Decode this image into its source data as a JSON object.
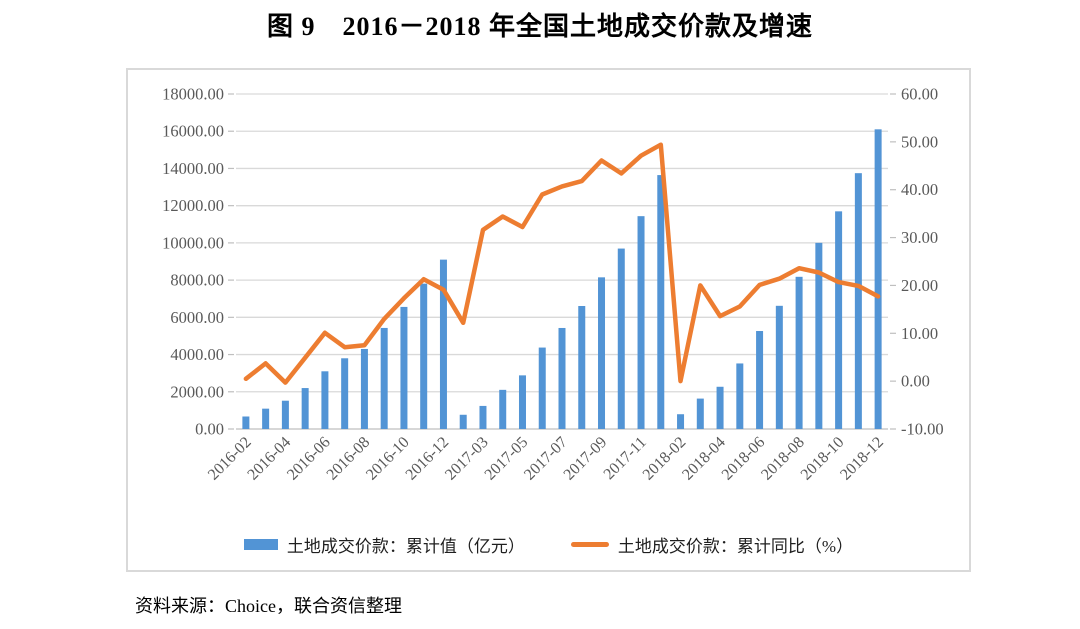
{
  "title": "图 9　2016－2018 年全国土地成交价款及增速",
  "source": "资料来源：Choice，联合资信整理",
  "colors": {
    "bar": "#5294d5",
    "line": "#ed7d31",
    "grid": "#d9d9d9",
    "axis_baseline": "#bfbfbf",
    "tick_text": "#595959"
  },
  "legend": [
    {
      "label": "土地成交价款：累计值（亿元）",
      "type": "bar",
      "color": "#5294d5"
    },
    {
      "label": "土地成交价款：累计同比（%）",
      "type": "line",
      "color": "#ed7d31"
    }
  ],
  "chart_data": {
    "type": "combo-bar-line",
    "categories": [
      "2016-02",
      "2016-03",
      "2016-04",
      "2016-05",
      "2016-06",
      "2016-07",
      "2016-08",
      "2016-09",
      "2016-10",
      "2016-11",
      "2016-12",
      "2017-02",
      "2017-03",
      "2017-04",
      "2017-05",
      "2017-06",
      "2017-07",
      "2017-08",
      "2017-09",
      "2017-10",
      "2017-11",
      "2017-12",
      "2018-02",
      "2018-03",
      "2018-04",
      "2018-05",
      "2018-06",
      "2018-07",
      "2018-08",
      "2018-09",
      "2018-10",
      "2018-11",
      "2018-12"
    ],
    "x_tick_labels_shown": [
      "2016-02",
      "2016-04",
      "2016-06",
      "2016-08",
      "2016-10",
      "2016-12",
      "2017-03",
      "2017-05",
      "2017-07",
      "2017-09",
      "2017-11",
      "2018-02",
      "2018-04",
      "2018-06",
      "2018-08",
      "2018-10",
      "2018-12"
    ],
    "series": [
      {
        "name": "土地成交价款：累计值（亿元）",
        "type": "bar",
        "axis": "left",
        "color": "#5294d5",
        "values": [
          672,
          1093,
          1520,
          2200,
          3100,
          3800,
          4300,
          5430,
          6560,
          7810,
          9100,
          765,
          1240,
          2104,
          2882,
          4376,
          5428,
          6609,
          8149,
          9695,
          11436,
          13643,
          794,
          1634,
          2269,
          3522,
          5265,
          6619,
          8177,
          10002,
          11695,
          13746,
          16102
        ]
      },
      {
        "name": "土地成交价款：累计同比（%）",
        "type": "line",
        "axis": "right",
        "color": "#ed7d31",
        "values": [
          0.5,
          3.7,
          -0.3,
          4.9,
          10.1,
          7.1,
          7.5,
          13.0,
          17.3,
          21.3,
          19.1,
          12.2,
          31.6,
          34.4,
          32.2,
          39.0,
          40.7,
          41.8,
          46.1,
          43.4,
          47.1,
          49.4,
          0.0,
          20.0,
          13.6,
          15.6,
          20.1,
          21.4,
          23.6,
          22.7,
          20.7,
          19.9,
          17.7
        ]
      }
    ],
    "left_axis": {
      "min": 0,
      "max": 18000,
      "step": 2000,
      "ticks": [
        "0.00",
        "2000.00",
        "4000.00",
        "6000.00",
        "8000.00",
        "10000.00",
        "12000.00",
        "14000.00",
        "16000.00",
        "18000.00"
      ]
    },
    "right_axis": {
      "min": -10,
      "max": 60,
      "step": 10,
      "ticks": [
        "-10.00",
        "0.00",
        "10.00",
        "20.00",
        "30.00",
        "40.00",
        "50.00",
        "60.00"
      ]
    },
    "grid": true,
    "legend_position": "bottom",
    "x_label_rotation": -45
  }
}
